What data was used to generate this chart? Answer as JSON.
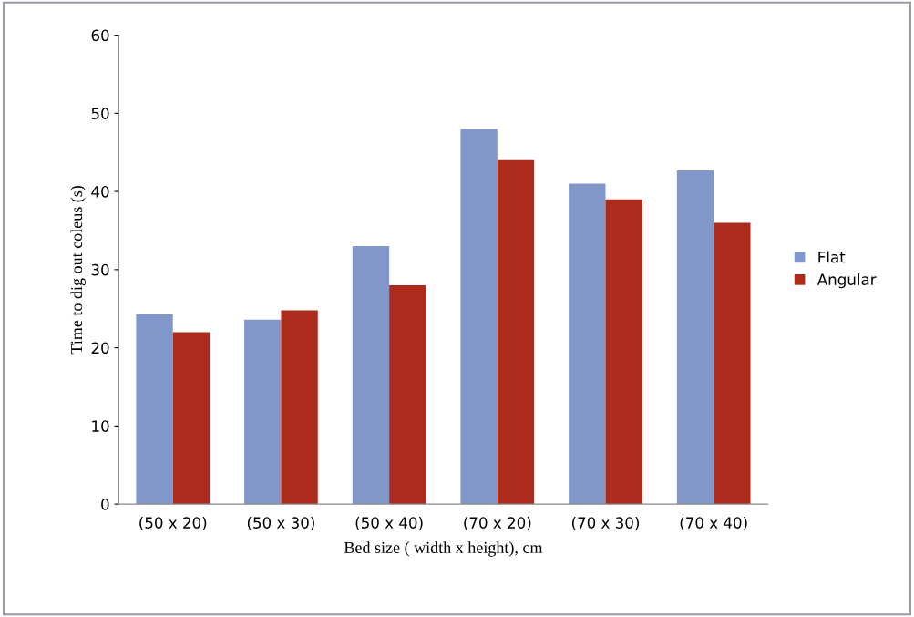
{
  "chart_data": {
    "type": "bar",
    "xlabel": "Bed size ( width x height), cm",
    "ylabel": "Time to dig out coleus (s)",
    "categories": [
      "(50 x 20)",
      "(50 x 30)",
      "(50 x 40)",
      "(70 x 20)",
      "(70 x 30)",
      "(70 x 40)"
    ],
    "series": [
      {
        "name": "Flat",
        "color": "#8196c9",
        "values": [
          24.3,
          23.6,
          33,
          48,
          41,
          42.7
        ]
      },
      {
        "name": "Angular",
        "color": "#ad2b1c",
        "values": [
          22,
          24.8,
          28,
          44,
          39,
          36
        ]
      }
    ],
    "ylim": [
      0,
      60
    ],
    "yticks": [
      0,
      10,
      20,
      30,
      40,
      50,
      60
    ],
    "grid": false,
    "legend": "right"
  }
}
